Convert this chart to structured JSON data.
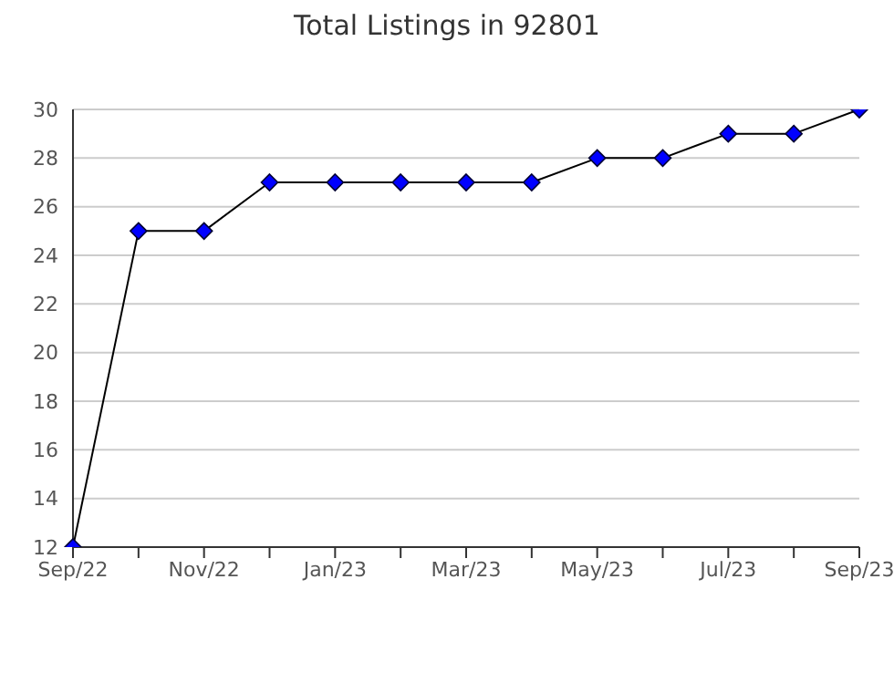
{
  "chart_data": {
    "type": "line",
    "title": "Total Listings in 92801",
    "categories": [
      "Sep/22",
      null,
      "Nov/22",
      null,
      "Jan/23",
      null,
      "Mar/23",
      null,
      "May/23",
      null,
      "Jul/23",
      null,
      "Sep/23"
    ],
    "series": [
      {
        "color": "#0000ff",
        "values": [
          12,
          25,
          25,
          27,
          27,
          27,
          27,
          27,
          28,
          28,
          29,
          29,
          30
        ]
      }
    ],
    "ylim": [
      12,
      30
    ],
    "yticks": [
      12,
      14,
      16,
      18,
      20,
      22,
      24,
      26,
      28,
      30
    ],
    "grid": "y",
    "marker": "diamond",
    "line_style": "solid",
    "legend": false
  }
}
